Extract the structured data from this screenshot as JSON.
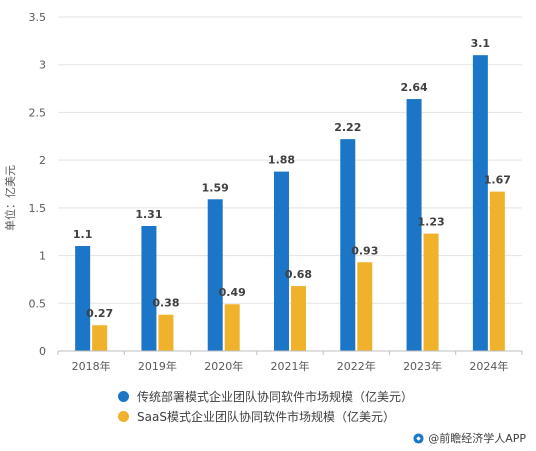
{
  "chart_data": {
    "type": "bar",
    "categories": [
      "2018年",
      "2019年",
      "2020年",
      "2021年",
      "2022年",
      "2023年",
      "2024年"
    ],
    "series": [
      {
        "name": "传统部署模式企业团队协同软件市场规模（亿美元）",
        "values": [
          1.1,
          1.31,
          1.59,
          1.88,
          2.22,
          2.64,
          3.1
        ],
        "color": "#1b76c7"
      },
      {
        "name": "SaaS模式企业团队协同软件市场规模（亿美元）",
        "values": [
          0.27,
          0.38,
          0.49,
          0.68,
          0.93,
          1.23,
          1.67
        ],
        "color": "#f0b12b"
      }
    ],
    "data_labels": [
      [
        "1.1",
        "1.31",
        "1.59",
        "1.88",
        "2.22",
        "2.64",
        "3.1"
      ],
      [
        "0.27",
        "0.38",
        "0.49",
        "0.68",
        "0.93",
        "1.23",
        "1.67"
      ]
    ],
    "ylabel": "单位：亿美元",
    "ylim": [
      0,
      3.5
    ],
    "yticks": [
      "0",
      "0.5",
      "1",
      "1.5",
      "2",
      "2.5",
      "3",
      "3.5"
    ],
    "grid": true,
    "legend_position": "bottom"
  },
  "source": {
    "text": "@前瞻经济学人APP",
    "icon": "qianzhan-logo-icon"
  }
}
